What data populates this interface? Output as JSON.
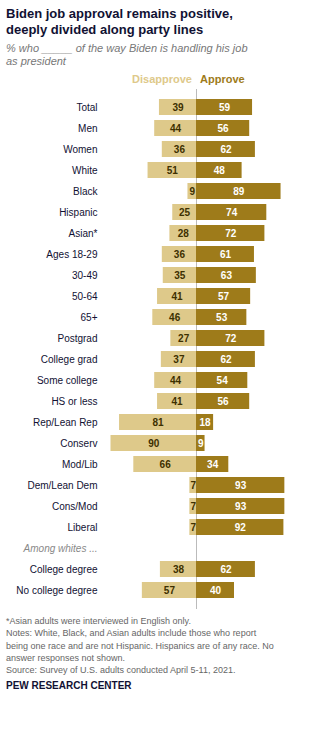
{
  "chart_data": {
    "type": "bar",
    "orientation": "horizontal",
    "title": "Biden job approval remains positive,\ndeeply divided along party lines",
    "subtitle": "% who _____ of the way Biden is handling his job\nas president",
    "categories": [
      "Total",
      "Men",
      "Women",
      "White",
      "Black",
      "Hispanic",
      "Asian*",
      "Ages 18-29",
      "30-49",
      "50-64",
      "65+",
      "Postgrad",
      "College grad",
      "Some college",
      "HS or less",
      "Rep/Lean Rep",
      "Conserv",
      "Mod/Lib",
      "Dem/Lean Dem",
      "Cons/Mod",
      "Liberal",
      "College degree",
      "No college degree"
    ],
    "series": [
      {
        "name": "Disapprove",
        "color": "#DEC98A",
        "values": [
          39,
          44,
          36,
          51,
          9,
          25,
          28,
          36,
          35,
          41,
          46,
          27,
          37,
          44,
          41,
          81,
          90,
          66,
          7,
          7,
          7,
          38,
          57
        ]
      },
      {
        "name": "Approve",
        "color": "#9E7B1A",
        "values": [
          59,
          56,
          62,
          48,
          89,
          74,
          72,
          61,
          63,
          57,
          53,
          72,
          62,
          54,
          56,
          18,
          9,
          34,
          93,
          93,
          92,
          62,
          40
        ]
      }
    ],
    "xlim": [
      0,
      100
    ],
    "data_labels": true,
    "tick_labels": "y",
    "grid": false,
    "annotations": [
      {
        "text": "Among whites ...",
        "category": "College degree"
      }
    ],
    "footnote": "*Asian adults were interviewed in English only.\nNotes: White, Black, and Asian adults include those who report\nbeing one race and are not Hispanic. Hispanics are of any race. No\nanswer responses not shown.\nSource: Survey of U.S. adults conducted April 5-11, 2021.",
    "footer": "PEW RESEARCH CENTER"
  }
}
